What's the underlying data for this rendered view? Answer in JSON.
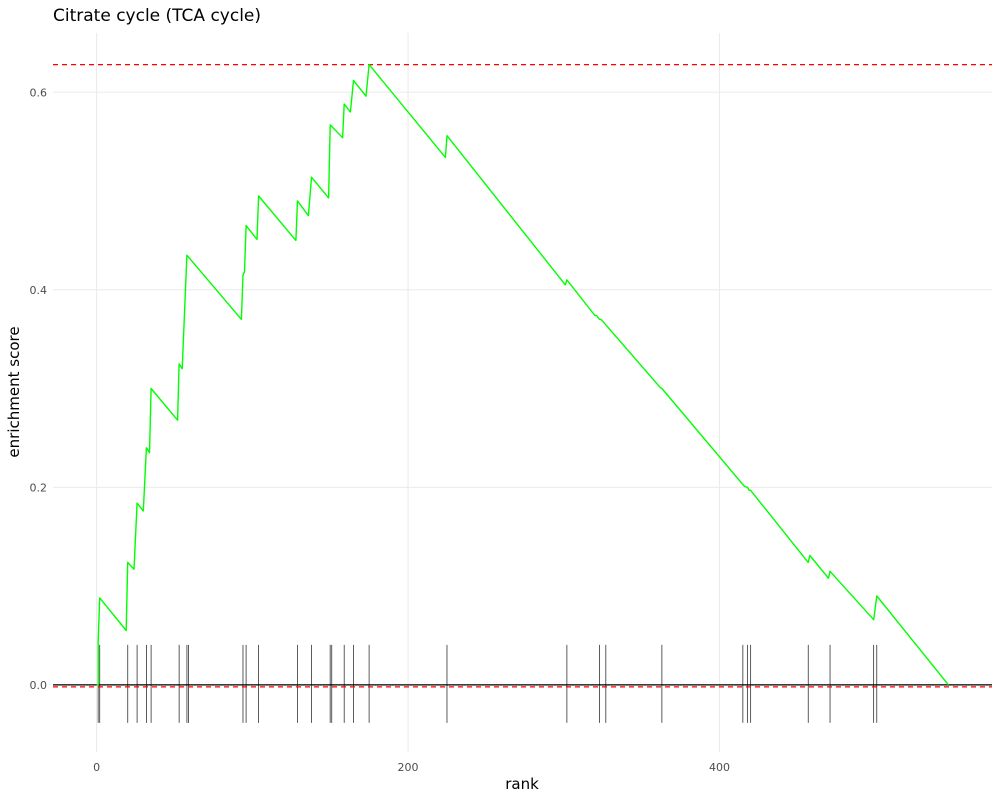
{
  "chart_data": {
    "type": "line",
    "title": "Citrate cycle (TCA cycle)",
    "xlabel": "rank",
    "ylabel": "enrichment score",
    "xlim": [
      -28,
      575
    ],
    "ylim": [
      -0.068,
      0.66
    ],
    "x_ticks": [
      0,
      200,
      400
    ],
    "y_ticks": [
      0.0,
      0.2,
      0.4,
      0.6
    ],
    "x_tick_labels": [
      "0",
      "200",
      "400"
    ],
    "y_tick_labels": [
      "0.0",
      "0.2",
      "0.4",
      "0.6"
    ],
    "grid": true,
    "max_es": 0.628,
    "line_color": "#00ff00",
    "reference_line_color": "#ff0000",
    "series": [
      {
        "points": [
          [
            0,
            0.0
          ],
          [
            1,
            0.0
          ],
          [
            1,
            0.045
          ],
          [
            2,
            0.088
          ],
          [
            19,
            0.055
          ],
          [
            20,
            0.124
          ],
          [
            24,
            0.117
          ],
          [
            26,
            0.184
          ],
          [
            30,
            0.176
          ],
          [
            32,
            0.24
          ],
          [
            34,
            0.235
          ],
          [
            35,
            0.3
          ],
          [
            52,
            0.268
          ],
          [
            53,
            0.325
          ],
          [
            55,
            0.32
          ],
          [
            58,
            0.435
          ],
          [
            93,
            0.37
          ],
          [
            94,
            0.415
          ],
          [
            95,
            0.418
          ],
          [
            96,
            0.465
          ],
          [
            103,
            0.451
          ],
          [
            104,
            0.495
          ],
          [
            128,
            0.45
          ],
          [
            129,
            0.49
          ],
          [
            136,
            0.475
          ],
          [
            138,
            0.514
          ],
          [
            149,
            0.493
          ],
          [
            150,
            0.567
          ],
          [
            158,
            0.554
          ],
          [
            159,
            0.588
          ],
          [
            163,
            0.58
          ],
          [
            165,
            0.612
          ],
          [
            173,
            0.596
          ],
          [
            175,
            0.628
          ],
          [
            224,
            0.534
          ],
          [
            225,
            0.556
          ],
          [
            301,
            0.405
          ],
          [
            302,
            0.41
          ],
          [
            320,
            0.374
          ],
          [
            321,
            0.374
          ],
          [
            323,
            0.37
          ],
          [
            324,
            0.37
          ],
          [
            362,
            0.301
          ],
          [
            363,
            0.3
          ],
          [
            415,
            0.203
          ],
          [
            416,
            0.201
          ],
          [
            418,
            0.2
          ],
          [
            419,
            0.197
          ],
          [
            420,
            0.197
          ],
          [
            457,
            0.124
          ],
          [
            458,
            0.131
          ],
          [
            470,
            0.108
          ],
          [
            471,
            0.115
          ],
          [
            499,
            0.066
          ],
          [
            501,
            0.09
          ],
          [
            547,
            0.0
          ]
        ]
      }
    ],
    "hit_ranks": [
      1,
      2,
      20,
      26,
      32,
      35,
      53,
      58,
      59,
      94,
      96,
      104,
      129,
      138,
      150,
      151,
      159,
      165,
      175,
      225,
      302,
      323,
      327,
      363,
      415,
      418,
      420,
      457,
      471,
      499,
      501
    ]
  }
}
